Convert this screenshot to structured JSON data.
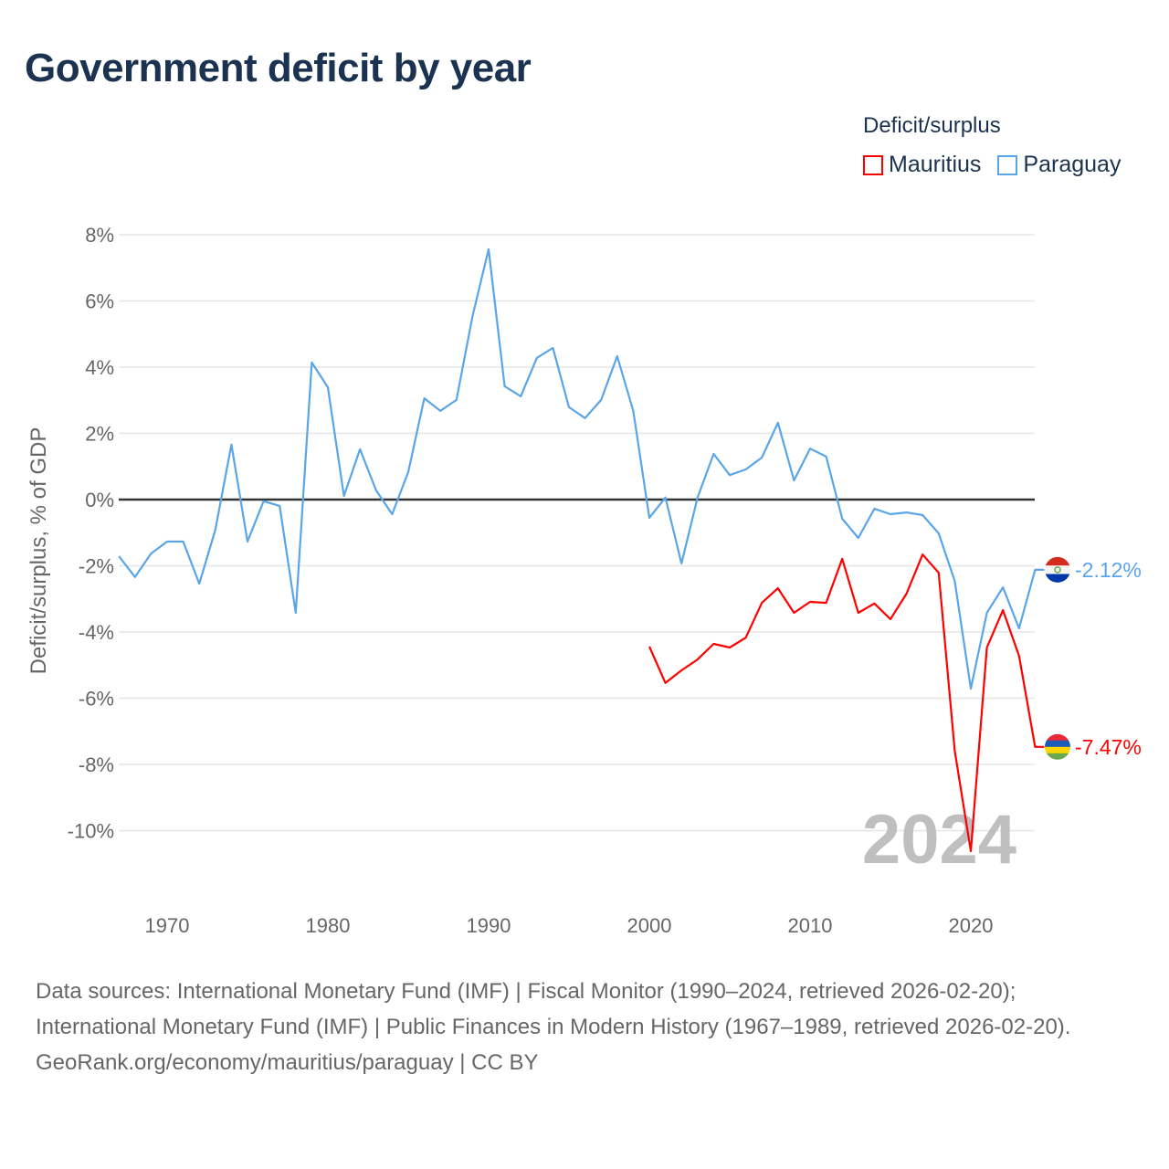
{
  "title": "Government deficit by year",
  "legend": {
    "title": "Deficit/surplus",
    "items": [
      {
        "label": "Mauritius",
        "color": "#ff0000"
      },
      {
        "label": "Paraguay",
        "color": "#5aa5e8"
      }
    ]
  },
  "chart_data": {
    "type": "line",
    "title": "Government deficit by year",
    "xlabel": "",
    "ylabel": "Deficit/surplus, % of GDP",
    "xlim": [
      1967,
      2024
    ],
    "ylim": [
      -12,
      8.5
    ],
    "yticks": [
      8,
      6,
      4,
      2,
      0,
      -2,
      -4,
      -6,
      -8,
      -10
    ],
    "ytick_labels": [
      "8%",
      "6%",
      "4%",
      "2%",
      "0%",
      "-2%",
      "-4%",
      "-6%",
      "-8%",
      "-10%"
    ],
    "xticks": [
      1970,
      1980,
      1990,
      2000,
      2010,
      2020
    ],
    "xtick_labels": [
      "1970",
      "1980",
      "1990",
      "2000",
      "2010",
      "2020"
    ],
    "grid": true,
    "year_watermark": "2024",
    "series": [
      {
        "name": "Paraguay",
        "color": "#5aa5e8",
        "end_label": "-2.12%",
        "x": [
          1967,
          1968,
          1969,
          1970,
          1971,
          1972,
          1973,
          1974,
          1975,
          1976,
          1977,
          1978,
          1979,
          1980,
          1981,
          1982,
          1983,
          1984,
          1985,
          1986,
          1987,
          1988,
          1989,
          1990,
          1991,
          1992,
          1993,
          1994,
          1995,
          1996,
          1997,
          1998,
          1999,
          2000,
          2001,
          2002,
          2003,
          2004,
          2005,
          2006,
          2007,
          2008,
          2009,
          2010,
          2011,
          2012,
          2013,
          2014,
          2015,
          2016,
          2017,
          2018,
          2019,
          2020,
          2021,
          2022,
          2023,
          2024
        ],
        "values": [
          -1.71,
          -2.34,
          -1.63,
          -1.27,
          -1.27,
          -2.54,
          -0.91,
          1.66,
          -1.27,
          -0.05,
          -0.19,
          -3.42,
          4.14,
          3.39,
          0.11,
          1.52,
          0.28,
          -0.44,
          0.83,
          3.06,
          2.68,
          3.01,
          5.54,
          7.56,
          3.42,
          3.12,
          4.28,
          4.58,
          2.79,
          2.46,
          3.01,
          4.33,
          2.68,
          -0.55,
          0.06,
          -1.93,
          0.06,
          1.38,
          0.74,
          0.91,
          1.27,
          2.32,
          0.58,
          1.54,
          1.3,
          -0.58,
          -1.16,
          -0.28,
          -0.44,
          -0.39,
          -0.47,
          -1.02,
          -2.46,
          -5.71,
          -3.42,
          -2.65,
          -3.89,
          -2.12
        ]
      },
      {
        "name": "Mauritius",
        "color": "#ff0000",
        "end_label": "-7.47%",
        "x": [
          2000,
          2001,
          2002,
          2003,
          2004,
          2005,
          2006,
          2007,
          2008,
          2009,
          2010,
          2011,
          2012,
          2013,
          2014,
          2015,
          2016,
          2017,
          2018,
          2019,
          2020,
          2021,
          2022,
          2023,
          2024
        ],
        "values": [
          -4.44,
          -5.54,
          -5.16,
          -4.83,
          -4.36,
          -4.47,
          -4.17,
          -3.12,
          -2.68,
          -3.42,
          -3.09,
          -3.12,
          -1.79,
          -3.42,
          -3.14,
          -3.61,
          -2.84,
          -1.66,
          -2.21,
          -7.59,
          -10.62,
          -4.47,
          -3.34,
          -4.72,
          -7.47
        ]
      }
    ]
  },
  "footer": {
    "sources": "Data sources: International Monetary Fund (IMF) | Fiscal Monitor (1990–2024, retrieved 2026-02-20); International Monetary Fund (IMF) | Public Finances in Modern History (1967–1989, retrieved 2026-02-20).",
    "credit": "GeoRank.org/economy/mauritius/paraguay | CC BY"
  }
}
